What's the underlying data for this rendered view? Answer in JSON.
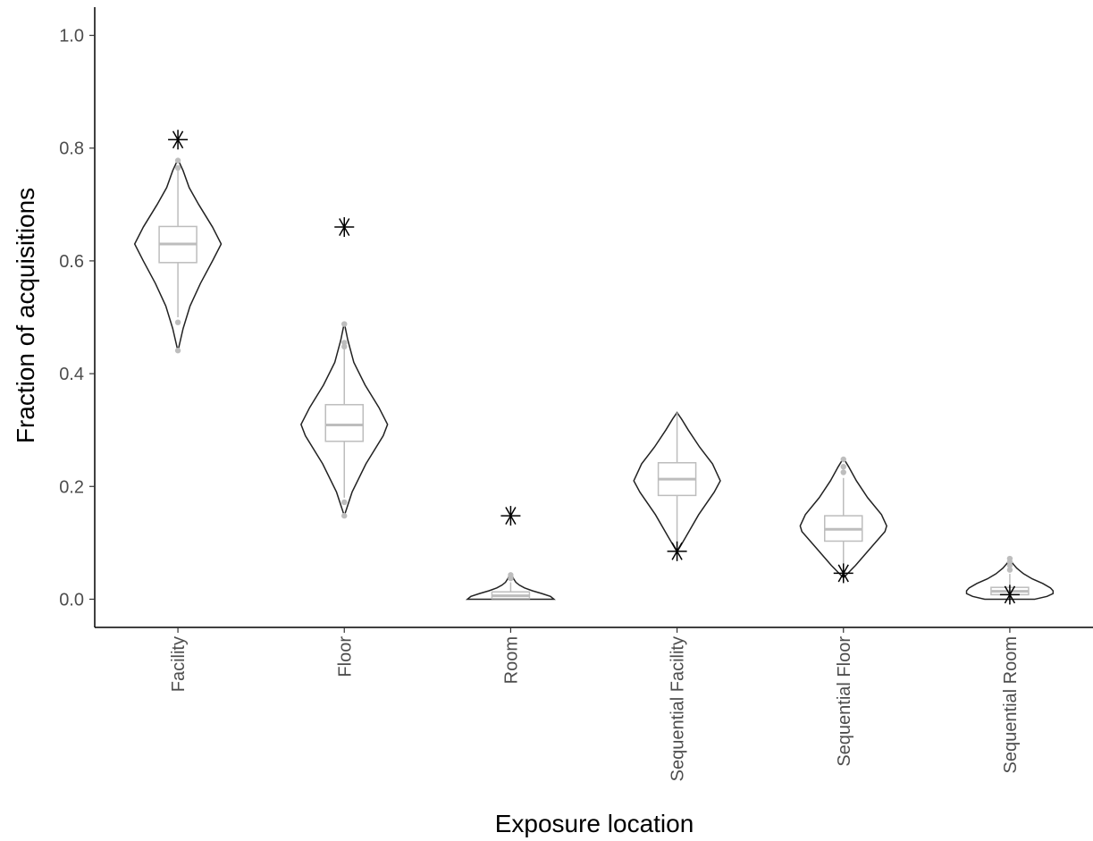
{
  "chart_data": {
    "type": "violin",
    "xlabel": "Exposure location",
    "ylabel": "Fraction of acquisitions",
    "ylim": [
      -0.05,
      1.05
    ],
    "yticks": [
      0.0,
      0.2,
      0.4,
      0.6,
      0.8,
      1.0
    ],
    "ytick_labels": [
      "0.0",
      "0.2",
      "0.4",
      "0.6",
      "0.8",
      "1.0"
    ],
    "grid": false,
    "legend": "none",
    "colors": {
      "violin": "#222222",
      "box": "#bdbdbd",
      "observed": "#000000"
    },
    "categories": [
      {
        "label": "Facility",
        "violin": {
          "min": 0.44,
          "max": 0.78,
          "shape": [
            [
              0.44,
              0.0
            ],
            [
              0.48,
              0.12
            ],
            [
              0.52,
              0.28
            ],
            [
              0.56,
              0.52
            ],
            [
              0.6,
              0.8
            ],
            [
              0.63,
              1.0
            ],
            [
              0.66,
              0.8
            ],
            [
              0.7,
              0.48
            ],
            [
              0.73,
              0.26
            ],
            [
              0.76,
              0.12
            ],
            [
              0.78,
              0.0
            ]
          ]
        },
        "box": {
          "q1": 0.597,
          "median": 0.63,
          "q3": 0.661,
          "whisker_low": 0.5,
          "whisker_high": 0.765
        },
        "outliers": [
          0.441,
          0.491,
          0.765,
          0.778
        ],
        "observed": 0.815
      },
      {
        "label": "Floor",
        "violin": {
          "min": 0.148,
          "max": 0.49,
          "shape": [
            [
              0.148,
              0.0
            ],
            [
              0.19,
              0.18
            ],
            [
              0.24,
              0.5
            ],
            [
              0.29,
              0.9
            ],
            [
              0.31,
              1.0
            ],
            [
              0.34,
              0.8
            ],
            [
              0.38,
              0.48
            ],
            [
              0.42,
              0.22
            ],
            [
              0.46,
              0.08
            ],
            [
              0.49,
              0.0
            ]
          ]
        },
        "box": {
          "q1": 0.28,
          "median": 0.309,
          "q3": 0.345,
          "whisker_low": 0.18,
          "whisker_high": 0.445
        },
        "outliers": [
          0.148,
          0.172,
          0.448,
          0.455,
          0.488
        ],
        "observed": 0.66
      },
      {
        "label": "Room",
        "violin": {
          "min": 0.0,
          "max": 0.044,
          "shape": [
            [
              0.0,
              1.0
            ],
            [
              0.005,
              0.92
            ],
            [
              0.01,
              0.72
            ],
            [
              0.015,
              0.5
            ],
            [
              0.02,
              0.32
            ],
            [
              0.025,
              0.2
            ],
            [
              0.03,
              0.12
            ],
            [
              0.036,
              0.07
            ],
            [
              0.04,
              0.04
            ],
            [
              0.044,
              0.0
            ]
          ]
        },
        "box": {
          "q1": 0.001,
          "median": 0.006,
          "q3": 0.013,
          "whisker_low": 0.0,
          "whisker_high": 0.03
        },
        "outliers": [
          0.037,
          0.043
        ],
        "observed": 0.148
      },
      {
        "label": "Sequential Facility",
        "violin": {
          "min": 0.084,
          "max": 0.331,
          "shape": [
            [
              0.084,
              0.0
            ],
            [
              0.11,
              0.2
            ],
            [
              0.15,
              0.5
            ],
            [
              0.19,
              0.86
            ],
            [
              0.21,
              1.0
            ],
            [
              0.24,
              0.82
            ],
            [
              0.27,
              0.52
            ],
            [
              0.3,
              0.26
            ],
            [
              0.32,
              0.1
            ],
            [
              0.331,
              0.0
            ]
          ]
        },
        "box": {
          "q1": 0.184,
          "median": 0.213,
          "q3": 0.242,
          "whisker_low": 0.1,
          "whisker_high": 0.331
        },
        "outliers": [],
        "observed": 0.085
      },
      {
        "label": "Sequential Floor",
        "violin": {
          "min": 0.038,
          "max": 0.25,
          "shape": [
            [
              0.038,
              0.0
            ],
            [
              0.06,
              0.28
            ],
            [
              0.09,
              0.62
            ],
            [
              0.12,
              0.96
            ],
            [
              0.13,
              1.0
            ],
            [
              0.15,
              0.88
            ],
            [
              0.18,
              0.56
            ],
            [
              0.21,
              0.3
            ],
            [
              0.235,
              0.12
            ],
            [
              0.25,
              0.0
            ]
          ]
        },
        "box": {
          "q1": 0.103,
          "median": 0.124,
          "q3": 0.148,
          "whisker_low": 0.04,
          "whisker_high": 0.215
        },
        "outliers": [
          0.225,
          0.235,
          0.248
        ],
        "observed": 0.046
      },
      {
        "label": "Sequential Room",
        "violin": {
          "min": 0.0,
          "max": 0.072,
          "shape": [
            [
              0.0,
              0.58
            ],
            [
              0.005,
              0.86
            ],
            [
              0.01,
              1.0
            ],
            [
              0.015,
              1.0
            ],
            [
              0.02,
              0.94
            ],
            [
              0.028,
              0.76
            ],
            [
              0.036,
              0.52
            ],
            [
              0.045,
              0.32
            ],
            [
              0.055,
              0.16
            ],
            [
              0.064,
              0.06
            ],
            [
              0.072,
              0.0
            ]
          ]
        },
        "box": {
          "q1": 0.008,
          "median": 0.014,
          "q3": 0.021,
          "whisker_low": 0.0,
          "whisker_high": 0.045
        },
        "outliers": [
          0.052,
          0.06,
          0.066,
          0.072
        ],
        "observed": 0.008
      }
    ]
  }
}
